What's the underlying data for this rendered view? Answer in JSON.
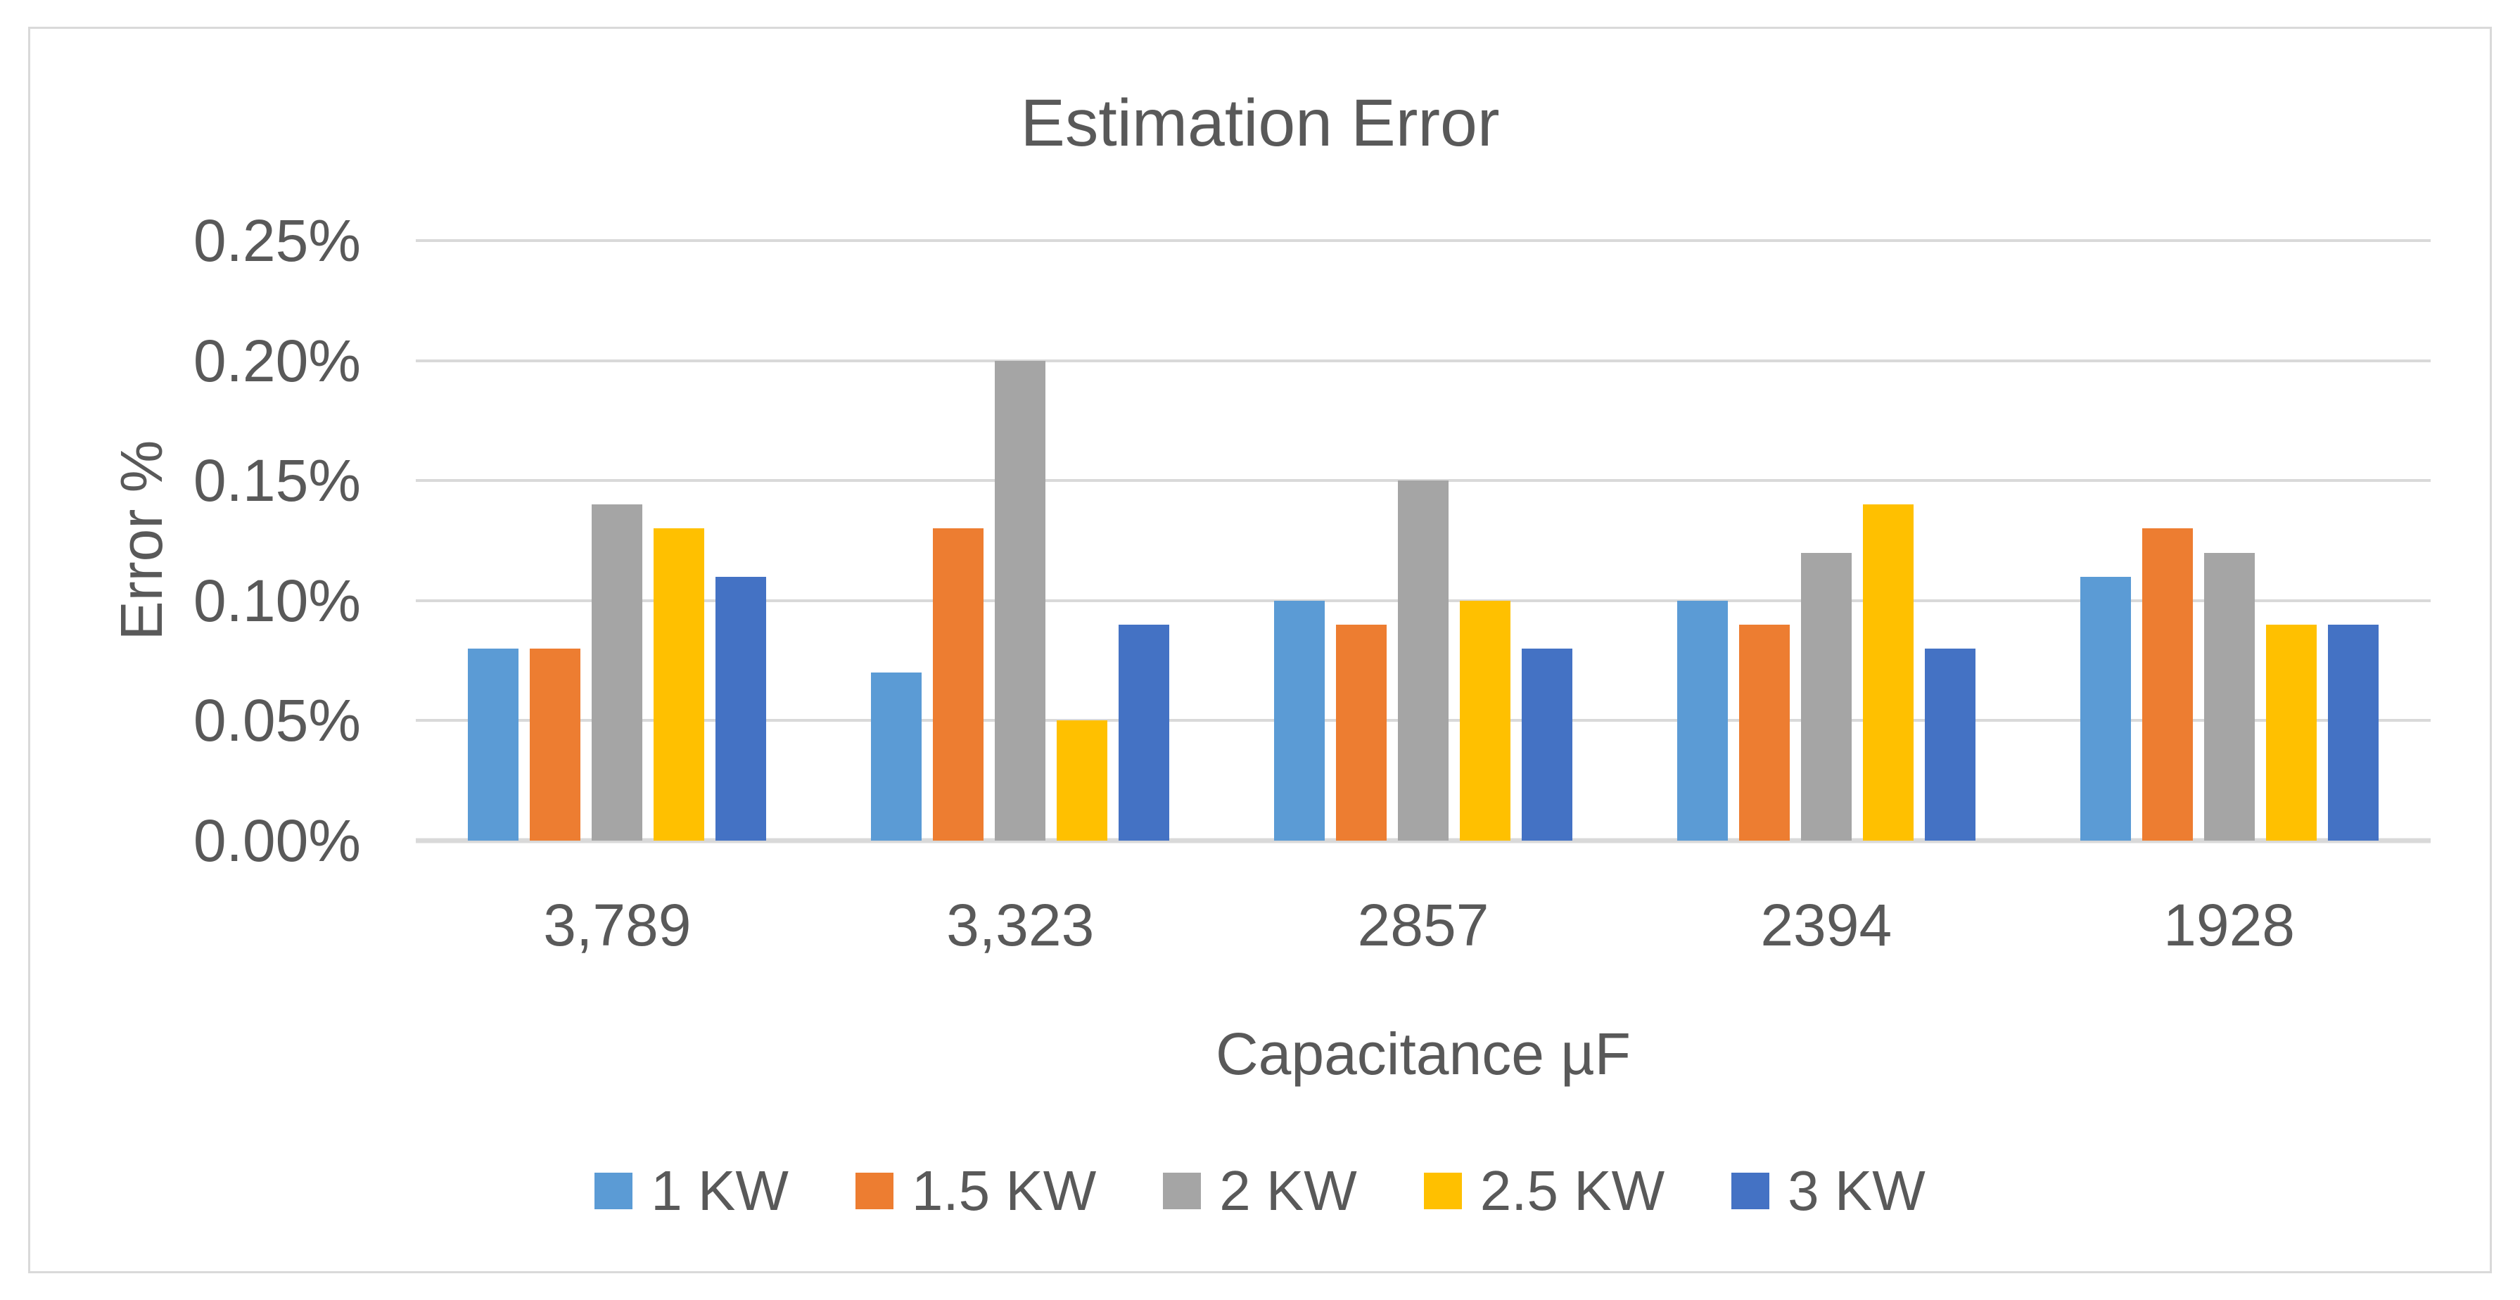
{
  "chart_data": {
    "type": "bar",
    "title": "Estimation Error",
    "xlabel": "Capacitance µF",
    "ylabel": "Error %",
    "categories": [
      "3,789",
      "3,323",
      "2857",
      "2394",
      "1928"
    ],
    "series": [
      {
        "name": "1 KW",
        "color": "#5B9BD5",
        "values": [
          0.08,
          0.07,
          0.1,
          0.1,
          0.11
        ]
      },
      {
        "name": "1.5 KW",
        "color": "#ED7D31",
        "values": [
          0.08,
          0.13,
          0.09,
          0.09,
          0.13
        ]
      },
      {
        "name": "2 KW",
        "color": "#A5A5A5",
        "values": [
          0.14,
          0.2,
          0.15,
          0.12,
          0.12
        ]
      },
      {
        "name": "2.5 KW",
        "color": "#FFC000",
        "values": [
          0.13,
          0.05,
          0.1,
          0.14,
          0.09
        ]
      },
      {
        "name": "3 KW",
        "color": "#4472C4",
        "values": [
          0.11,
          0.09,
          0.08,
          0.08,
          0.09
        ]
      }
    ],
    "value_unit": "%",
    "ylim": [
      0,
      0.25
    ],
    "y_ticks": [
      "0.00%",
      "0.05%",
      "0.10%",
      "0.15%",
      "0.20%",
      "0.25%"
    ],
    "grid": true,
    "legend_position": "bottom"
  },
  "styles": {
    "text_color": "#595959",
    "gridline_color": "#D9D9D9",
    "axis_line_color": "#D9D9D9",
    "frame_border_color": "#D9D9D9",
    "background_color": "#FFFFFF"
  }
}
